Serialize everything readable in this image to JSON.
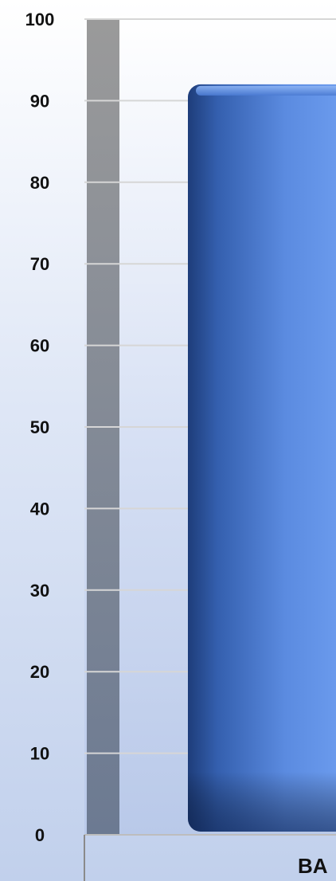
{
  "chart_data": {
    "type": "bar",
    "categories": [
      "BA"
    ],
    "values": [
      92
    ],
    "ylim": [
      0,
      100
    ],
    "yticks": [
      0,
      10,
      20,
      30,
      40,
      50,
      60,
      70,
      80,
      90,
      100
    ],
    "grid": true,
    "colors": {
      "bar": "#3f6fc9",
      "bar_highlight": "#6e9ef0",
      "bar_shadow": "#1e3d7a",
      "axis_wall": "#7c8797",
      "grid": "#d6d6d6",
      "text": "#111111"
    }
  }
}
